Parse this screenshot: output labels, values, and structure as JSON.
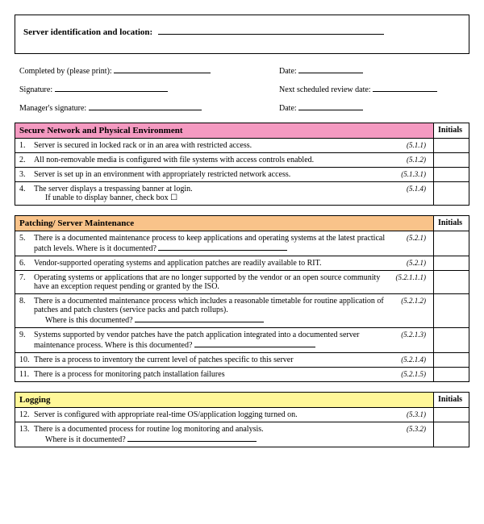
{
  "header": {
    "title": "Server identification and location:",
    "line_width": 280
  },
  "info": {
    "completed_by_label": "Completed by (please print):",
    "signature_label": "Signature:",
    "managers_sig_label": "Manager's signature:",
    "date_label": "Date:",
    "next_review_label": "Next scheduled review date:"
  },
  "sections": [
    {
      "title": "Secure Network and Physical Environment",
      "header_bg": "#f49ac1",
      "items": [
        {
          "num": "1.",
          "text": "Server is secured in locked rack or in an area with restricted access.",
          "ref": "(5.1.1)"
        },
        {
          "num": "2.",
          "text": "All non-removable media is configured with file systems with access controls enabled.",
          "ref": "(5.1.2)"
        },
        {
          "num": "3.",
          "text": "Server is set up in an environment with appropriately restricted network access.",
          "ref": "(5.1.3.1)"
        },
        {
          "num": "4.",
          "text": "The server displays a trespassing banner at login.",
          "sub": "If unable to display banner, check box   ☐",
          "ref": "(5.1.4)"
        }
      ]
    },
    {
      "title": "Patching/ Server Maintenance",
      "header_bg": "#f9c38a",
      "items": [
        {
          "num": "5.",
          "text": "There is a documented maintenance process to keep applications and operating systems at the latest practical patch levels. Where is it documented?",
          "doc_line": 160,
          "ref": "(5.2.1)"
        },
        {
          "num": "6.",
          "text": "Vendor-supported operating systems and application patches are readily available to RIT.",
          "ref": "(5.2.1)"
        },
        {
          "num": "7.",
          "text": "Operating systems or applications that are no longer supported by the vendor or an open source community have an exception request pending or granted by the ISO.",
          "ref": "(5.2.1.1.1)"
        },
        {
          "num": "8.",
          "text": "There is a documented maintenance process which includes a reasonable timetable for routine application of patches and patch clusters (service packs and patch rollups).",
          "sub": "Where is this documented?",
          "doc_line": 160,
          "ref": "(5.2.1.2)"
        },
        {
          "num": "9.",
          "text": "Systems supported by vendor patches have the patch application integrated into a documented server maintenance process.  Where is this documented?",
          "doc_line": 150,
          "ref": "(5.2.1.3)"
        },
        {
          "num": "10.",
          "text": "There is a process to inventory the current level of patches specific to this server",
          "ref": "(5.2.1.4)"
        },
        {
          "num": "11.",
          "text": "There is a process for monitoring patch installation failures",
          "ref": "(5.2.1.5)"
        }
      ]
    },
    {
      "title": "Logging",
      "header_bg": "#fff799",
      "items": [
        {
          "num": "12.",
          "text": "Server is configured with appropriate real-time OS/application logging turned on.",
          "ref": "(5.3.1)"
        },
        {
          "num": "13.",
          "text": "There is a documented process for routine log monitoring and analysis.",
          "sub": "Where is it documented?",
          "doc_line": 160,
          "ref": "(5.3.2)"
        }
      ]
    }
  ],
  "initials_label": "Initials"
}
